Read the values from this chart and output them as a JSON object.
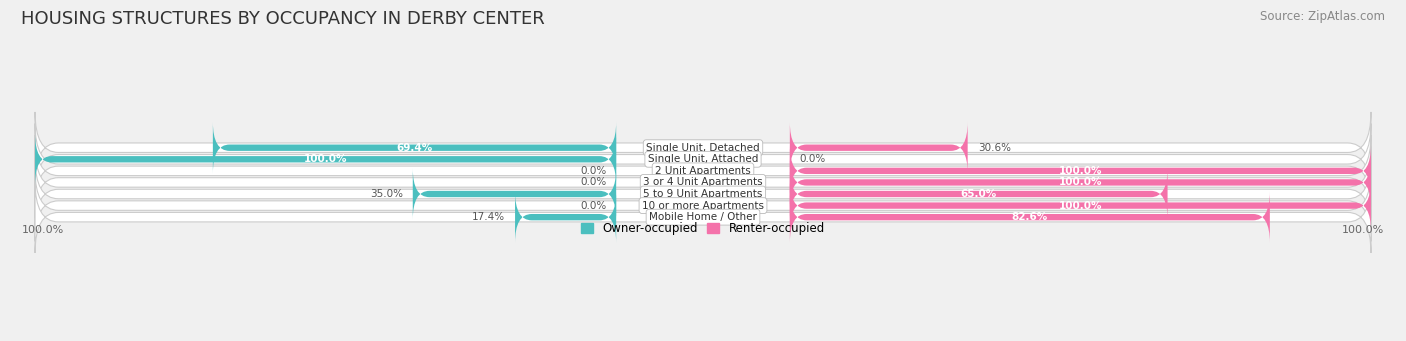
{
  "title": "HOUSING STRUCTURES BY OCCUPANCY IN DERBY CENTER",
  "source": "Source: ZipAtlas.com",
  "categories": [
    "Single Unit, Detached",
    "Single Unit, Attached",
    "2 Unit Apartments",
    "3 or 4 Unit Apartments",
    "5 to 9 Unit Apartments",
    "10 or more Apartments",
    "Mobile Home / Other"
  ],
  "owner_pct": [
    69.4,
    100.0,
    0.0,
    0.0,
    35.0,
    0.0,
    17.4
  ],
  "renter_pct": [
    30.6,
    0.0,
    100.0,
    100.0,
    65.0,
    100.0,
    82.6
  ],
  "owner_color": "#4BBFBF",
  "owner_color_light": "#A8DDE0",
  "renter_color": "#F472AA",
  "renter_color_light": "#F8B8D4",
  "bg_color": "#f0f0f0",
  "row_bg": "#e2e2e2",
  "axis_label_left": "100.0%",
  "axis_label_right": "100.0%",
  "title_fontsize": 13,
  "source_fontsize": 8.5,
  "figsize": [
    14.06,
    3.41
  ]
}
